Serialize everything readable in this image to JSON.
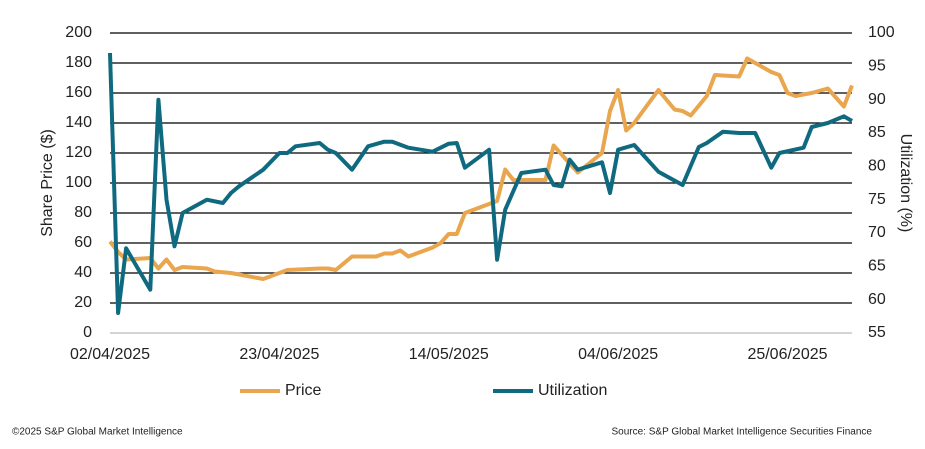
{
  "chart_data": {
    "type": "line",
    "y_label": "Share Price ($)",
    "y2_label": "Utilization (%)",
    "footer_left": "©2025 S&P Global Market Intelligence",
    "footer_right": "Source: S&P Global Market Intelligence Securities Finance",
    "grid": true,
    "legend": "bottom",
    "xlim": [
      "02/04/2025",
      "03/07/2025"
    ],
    "xticks": [
      "02/04/2025",
      "23/04/2025",
      "14/05/2025",
      "04/06/2025",
      "25/06/2025"
    ],
    "ylim": [
      0,
      200
    ],
    "yticks": [
      0,
      20,
      40,
      60,
      80,
      100,
      120,
      140,
      160,
      180,
      200
    ],
    "y2lim": [
      55,
      100
    ],
    "y2ticks": [
      55,
      60,
      65,
      70,
      75,
      80,
      85,
      90,
      95,
      100
    ],
    "series": [
      {
        "name": "Price",
        "color": "#e9a64e",
        "axis": "y",
        "x": [
          "02/04/2025",
          "03/04/2025",
          "04/04/2025",
          "07/04/2025",
          "08/04/2025",
          "09/04/2025",
          "10/04/2025",
          "11/04/2025",
          "14/04/2025",
          "15/04/2025",
          "17/04/2025",
          "21/04/2025",
          "24/04/2025",
          "28/04/2025",
          "29/04/2025",
          "30/04/2025",
          "02/05/2025",
          "05/05/2025",
          "06/05/2025",
          "07/05/2025",
          "08/05/2025",
          "09/05/2025",
          "12/05/2025",
          "13/05/2025",
          "14/05/2025",
          "15/05/2025",
          "16/05/2025",
          "20/05/2025",
          "21/05/2025",
          "22/05/2025",
          "26/05/2025",
          "27/05/2025",
          "29/05/2025",
          "30/05/2025",
          "02/06/2025",
          "03/06/2025",
          "04/06/2025",
          "05/06/2025",
          "06/06/2025",
          "09/06/2025",
          "11/06/2025",
          "12/06/2025",
          "13/06/2025",
          "15/06/2025",
          "16/06/2025",
          "19/06/2025",
          "20/06/2025",
          "23/06/2025",
          "24/06/2025",
          "25/06/2025",
          "26/06/2025",
          "28/06/2025",
          "30/06/2025",
          "02/07/2025",
          "03/07/2025"
        ],
        "values": [
          61,
          54,
          49,
          50,
          43,
          49,
          42,
          44,
          43,
          41,
          40,
          36,
          42,
          43,
          43,
          42,
          51,
          51,
          53,
          53,
          55,
          51,
          57,
          60,
          66,
          66,
          80,
          88,
          109,
          102,
          102,
          125,
          113,
          107,
          120,
          148,
          162,
          135,
          140,
          162,
          149,
          148,
          145,
          158,
          172,
          171,
          183,
          174,
          172,
          160,
          158,
          160,
          163,
          151,
          165
        ]
      },
      {
        "name": "Utilization",
        "color": "#0f6a80",
        "axis": "y2",
        "x": [
          "02/04/2025",
          "03/04/2025",
          "04/04/2025",
          "07/04/2025",
          "08/04/2025",
          "09/04/2025",
          "10/04/2025",
          "11/04/2025",
          "14/04/2025",
          "16/04/2025",
          "17/04/2025",
          "18/04/2025",
          "21/04/2025",
          "23/04/2025",
          "24/04/2025",
          "25/04/2025",
          "28/04/2025",
          "29/04/2025",
          "30/04/2025",
          "02/05/2025",
          "04/05/2025",
          "06/05/2025",
          "07/05/2025",
          "09/05/2025",
          "12/05/2025",
          "14/05/2025",
          "15/05/2025",
          "16/05/2025",
          "19/05/2025",
          "20/05/2025",
          "21/05/2025",
          "23/05/2025",
          "26/05/2025",
          "27/05/2025",
          "28/05/2025",
          "29/05/2025",
          "30/05/2025",
          "02/06/2025",
          "03/06/2025",
          "04/06/2025",
          "06/06/2025",
          "09/06/2025",
          "12/06/2025",
          "14/06/2025",
          "15/06/2025",
          "17/06/2025",
          "19/06/2025",
          "21/06/2025",
          "23/06/2025",
          "24/06/2025",
          "27/06/2025",
          "28/06/2025",
          "30/06/2025",
          "02/07/2025",
          "03/07/2025"
        ],
        "values": [
          97,
          58,
          67.7,
          61.5,
          90,
          75,
          68,
          73,
          75,
          74.5,
          76,
          77,
          79.5,
          82,
          82,
          83,
          83.5,
          82.5,
          82,
          79.5,
          83,
          83.7,
          83.7,
          82.8,
          82.2,
          83.4,
          83.5,
          79.8,
          82.5,
          66,
          73.5,
          79,
          79.5,
          77.2,
          77,
          81,
          79.5,
          80.6,
          76,
          82.5,
          83.2,
          79.2,
          77.2,
          82.9,
          83.5,
          85.2,
          85,
          85,
          79.8,
          82,
          82.8,
          85.9,
          86.5,
          87.5,
          86.8
        ]
      }
    ]
  }
}
